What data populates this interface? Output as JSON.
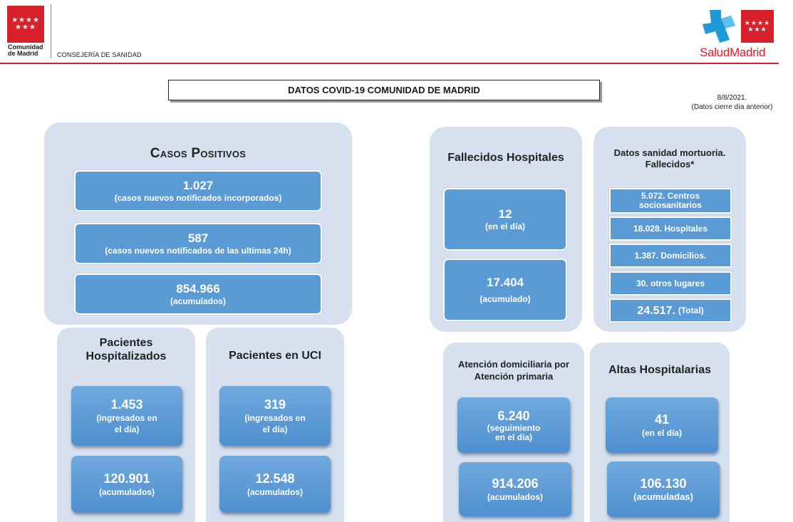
{
  "header": {
    "left_logo_stars": "★★★★\n★★★",
    "left_logo_name_1": "Comunidad",
    "left_logo_name_2": "de Madrid",
    "department": "CONSEJERÍA DE SANIDAD",
    "right_logo_stars": "★★★★\n★★★",
    "right_logo_word": "SaludMadrid",
    "brand_red": "#d8202a",
    "brand_blue": "#1e9ad6"
  },
  "report": {
    "title": "DATOS COVID-19 COMUNIDAD DE MADRID",
    "date": "8/8/2021.",
    "date_note": "(Datos cierre día anterior)"
  },
  "casos_positivos": {
    "title": "Casos Positivos",
    "items": [
      {
        "value": "1.027",
        "label": "(casos nuevos notificados incorporados)"
      },
      {
        "value": "587",
        "label": "(casos nuevos notificados de las ultimas 24h)"
      },
      {
        "value": "854.966",
        "label": "(acumulados)"
      }
    ]
  },
  "fallecidos_hospitales": {
    "title": "Fallecidos Hospitales",
    "items": [
      {
        "value": "12",
        "label": "(en el día)"
      },
      {
        "value": "17.404",
        "label": "(acumulado)"
      }
    ]
  },
  "sanidad_mortuoria": {
    "title_1": "Datos sanidad mortuoria.",
    "title_2": "Fallecidos*",
    "items": [
      "5.072. Centros sociosanitarios",
      "18.028. Hospitales",
      "1.387. Domicilios.",
      "30. otros lugares"
    ],
    "total_value": "24.517.",
    "total_label": "(Total)"
  },
  "pacientes_hospitalizados": {
    "title_1": "Pacientes",
    "title_2": "Hospitalizados",
    "day_value": "1.453",
    "day_label_1": "(ingresados en",
    "day_label_2": "el día)",
    "acc_value": "120.901",
    "acc_label": "(acumulados)"
  },
  "pacientes_uci": {
    "title": "Pacientes en UCI",
    "day_value": "319",
    "day_label_1": "(ingresados en",
    "day_label_2": "el día)",
    "acc_value": "12.548",
    "acc_label": "(acumulados)"
  },
  "atencion_domiciliaria": {
    "title_1": "Atención domiciliaria por",
    "title_2": "Atención primaria",
    "day_value": "6.240",
    "day_label_1": "(seguimiento",
    "day_label_2": "en el día)",
    "acc_value": "914.206",
    "acc_label": "(acumulados)"
  },
  "altas_hospitalarias": {
    "title": "Altas Hospitalarias",
    "day_value": "41",
    "day_label": "(en el día)",
    "acc_value": "106.130",
    "acc_label": "(acumuladas)"
  }
}
